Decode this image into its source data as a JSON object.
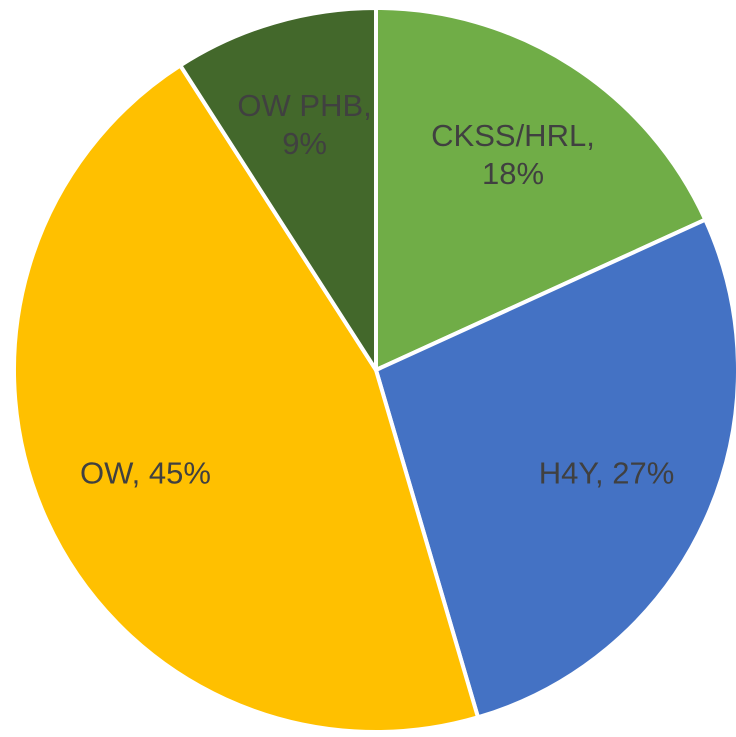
{
  "chart_data": {
    "type": "pie",
    "categories": [
      "CKSS/HRL",
      "H4Y",
      "OW",
      "OW PHB"
    ],
    "values": [
      18,
      27,
      45,
      9
    ],
    "value_labels": [
      "CKSS/HRL, 18%",
      "H4Y, 27%",
      "OW, 45%",
      "OW PHB, 9%"
    ],
    "colors": [
      "#70ad47",
      "#4472c4",
      "#ffc000",
      "#43682b"
    ]
  }
}
